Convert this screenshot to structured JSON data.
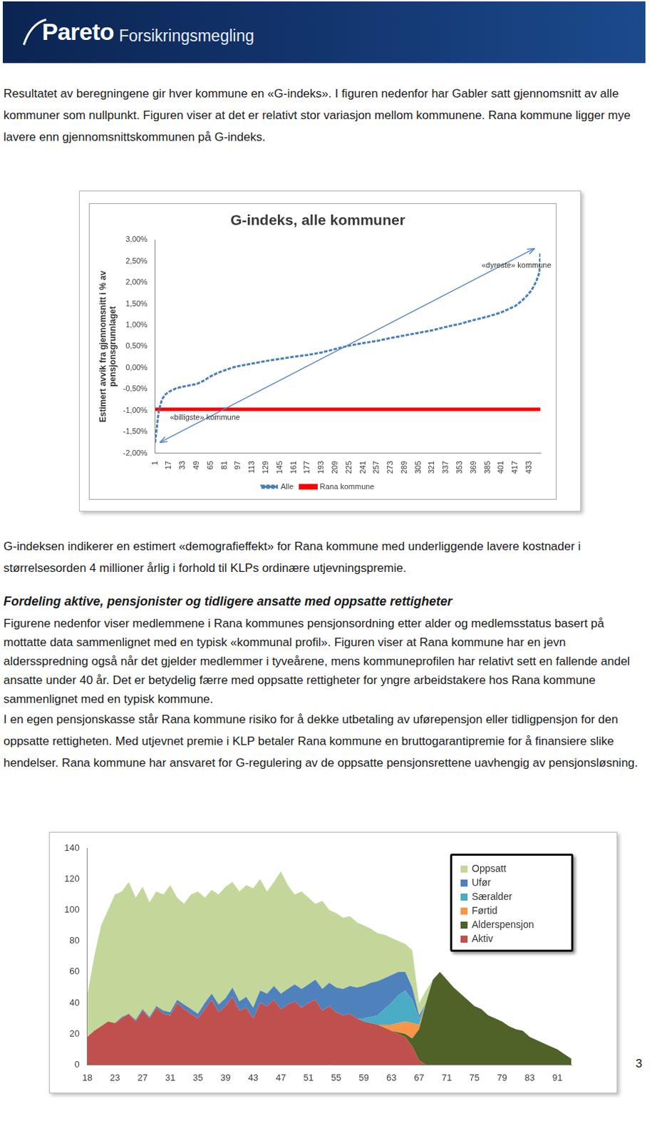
{
  "header": {
    "brand": "Pareto",
    "subbrand": "Forsikringsmegling"
  },
  "intro": "Resultatet av beregningene gir hver kommune en «G-indeks». I figuren nedenfor har Gabler satt gjennomsnitt av alle kommuner som nullpunkt. Figuren viser at det er relativt stor variasjon mellom kommunene. Rana kommune ligger mye lavere enn gjennomsnittskommunen på G-indeks.",
  "after_chart": "G-indeksen indikerer en estimert «demografieffekt» for Rana kommune med underliggende lavere kostnader i størrelsesorden 4 millioner årlig i forhold til KLPs ordinære utjevningspremie.",
  "section": {
    "heading": "Fordeling aktive, pensjonister og tidligere ansatte med oppsatte rettigheter",
    "paragraphs": [
      "Figurene nedenfor viser medlemmene i Rana kommunes pensjonsordning etter alder og medlemsstatus basert på mottatte data sammenlignet med en typisk «kommunal profil». Figuren viser at Rana kommune har en jevn aldersspredning også når det gjelder medlemmer i tyveårene, mens kommuneprofilen har relativt sett en fallende andel ansatte under 40 år. Det er betydelig færre med oppsatte rettigheter for yngre arbeidstakere hos Rana kommune sammenlignet med en typisk kommune.",
      "I en egen pensjonskasse står Rana kommune risiko for å dekke utbetaling av uførepensjon eller tidligpensjon for den oppsatte rettigheten. Med utjevnet premie i KLP betaler Rana kommune en bruttogarantipremie for å finansiere slike hendelser. Rana kommune har ansvaret for G-regulering av de oppsatte pensjonsrettene uavhengig av pensjonsløsning."
    ]
  },
  "page_number": 3,
  "chart_data": [
    {
      "type": "line",
      "title": "G-indeks, alle kommuner",
      "y_label": [
        "Estimert avvik fra gjennomsnitt i % av",
        "pensjonsgrunnlaget"
      ],
      "x": [
        1,
        2,
        3,
        4,
        5,
        6,
        8,
        10,
        13,
        17,
        25,
        33,
        41,
        49,
        57,
        65,
        73,
        81,
        89,
        97,
        113,
        129,
        145,
        161,
        177,
        193,
        209,
        225,
        241,
        257,
        273,
        289,
        305,
        321,
        337,
        353,
        369,
        385,
        401,
        417,
        425,
        430,
        435,
        438,
        441,
        443,
        445,
        446
      ],
      "series": [
        {
          "name": "Alle",
          "color": "#4a7ebb",
          "values": [
            -1.75,
            -1.55,
            -1.4,
            -1.2,
            -1.05,
            -0.95,
            -0.8,
            -0.7,
            -0.62,
            -0.56,
            -0.48,
            -0.44,
            -0.41,
            -0.38,
            -0.3,
            -0.2,
            -0.12,
            -0.06,
            0,
            0.04,
            0.1,
            0.16,
            0.21,
            0.26,
            0.3,
            0.36,
            0.44,
            0.52,
            0.58,
            0.63,
            0.7,
            0.76,
            0.82,
            0.88,
            0.96,
            1.03,
            1.12,
            1.2,
            1.3,
            1.45,
            1.58,
            1.68,
            1.8,
            1.9,
            2.02,
            2.12,
            2.25,
            2.7
          ]
        },
        {
          "name": "Rana kommune",
          "color": "#ff0000",
          "values": [
            -0.97,
            -0.97,
            -0.97,
            -0.97,
            -0.97,
            -0.97,
            -0.97,
            -0.97,
            -0.97,
            -0.97,
            -0.97,
            -0.97,
            -0.97,
            -0.97,
            -0.97,
            -0.97,
            -0.97,
            -0.97,
            -0.97,
            -0.97,
            -0.97,
            -0.97,
            -0.97,
            -0.97,
            -0.97,
            -0.97,
            -0.97,
            -0.97,
            -0.97,
            -0.97,
            -0.97,
            -0.97,
            -0.97,
            -0.97,
            -0.97,
            -0.97,
            -0.97,
            -0.97,
            -0.97,
            -0.97,
            -0.97,
            -0.97,
            -0.97,
            -0.97,
            -0.97,
            -0.97,
            -0.97,
            -0.97
          ]
        }
      ],
      "xlim": [
        1,
        446
      ],
      "xticks": [
        1,
        17,
        33,
        49,
        65,
        81,
        97,
        113,
        129,
        145,
        161,
        177,
        193,
        209,
        225,
        241,
        257,
        273,
        289,
        305,
        321,
        337,
        353,
        369,
        385,
        401,
        417,
        433
      ],
      "ylim": [
        -2,
        3
      ],
      "yticks": [
        {
          "value": -2,
          "label": "-2,00%"
        },
        {
          "value": -1.5,
          "label": "-1,50%"
        },
        {
          "value": -1,
          "label": "-1,00%"
        },
        {
          "value": -0.5,
          "label": "-0,50%"
        },
        {
          "value": 0,
          "label": "0,00%"
        },
        {
          "value": 0.5,
          "label": "0,50%"
        },
        {
          "value": 1,
          "label": "1,00%"
        },
        {
          "value": 1.5,
          "label": "1,50%"
        },
        {
          "value": 2,
          "label": "2,00%"
        },
        {
          "value": 2.5,
          "label": "2,50%"
        },
        {
          "value": 3,
          "label": "3,00%"
        }
      ],
      "annotations": [
        {
          "text": "«dyreste» kommune",
          "x": 378,
          "y": 2.4
        },
        {
          "text": "«billigste» kommune",
          "x": 18,
          "y": -1.17
        }
      ],
      "legend": "bottom",
      "grid": false
    },
    {
      "type": "area",
      "stacked": true,
      "legend": "upper right",
      "grid": false,
      "categories": [
        "18",
        null,
        null,
        null,
        "23",
        null,
        null,
        null,
        "27",
        null,
        null,
        null,
        "31",
        null,
        null,
        null,
        "35",
        null,
        null,
        null,
        "39",
        null,
        null,
        null,
        "43",
        null,
        null,
        null,
        "47",
        null,
        null,
        null,
        "51",
        null,
        null,
        null,
        "55",
        null,
        null,
        null,
        "59",
        null,
        null,
        null,
        "63",
        null,
        null,
        null,
        "67",
        null,
        null,
        null,
        "71",
        null,
        null,
        null,
        "75",
        null,
        null,
        null,
        "79",
        null,
        null,
        null,
        "83",
        null,
        null,
        null,
        "91",
        null,
        null
      ],
      "series": [
        {
          "name": "Oppsatt",
          "color": "#c4d79b",
          "values": [
            27,
            48,
            65,
            72,
            83,
            81,
            85,
            79,
            79,
            74,
            74,
            75,
            82,
            66,
            65,
            74,
            79,
            68,
            67,
            71,
            72,
            68,
            71,
            72,
            77,
            72,
            66,
            67,
            79,
            67,
            58,
            63,
            56,
            49,
            57,
            47,
            48,
            46,
            45,
            42,
            39,
            35,
            31,
            28,
            24,
            20,
            18,
            24,
            8,
            8,
            0,
            0,
            0,
            0,
            0,
            0,
            0,
            0,
            0,
            0,
            0,
            0,
            0,
            0,
            0,
            0,
            0,
            0,
            0,
            0,
            0
          ]
        },
        {
          "name": "Ufør",
          "color": "#4f81bd",
          "values": [
            0,
            0,
            0,
            0,
            0,
            1,
            0,
            1,
            1,
            1,
            1,
            2,
            2,
            2,
            3,
            3,
            3,
            4,
            4,
            5,
            5,
            6,
            6,
            7,
            7,
            8,
            8,
            9,
            10,
            10,
            11,
            12,
            12,
            13,
            14,
            15,
            16,
            17,
            18,
            20,
            21,
            22,
            22,
            20,
            18,
            15,
            12,
            8,
            2,
            0,
            0,
            0,
            0,
            0,
            0,
            0,
            0,
            0,
            0,
            0,
            0,
            0,
            0,
            0,
            0,
            0,
            0,
            0,
            0,
            0,
            0
          ]
        },
        {
          "name": "Særalder",
          "color": "#4bacc6",
          "values": [
            0,
            0,
            0,
            0,
            0,
            0,
            0,
            0,
            0,
            0,
            0,
            0,
            0,
            0,
            0,
            0,
            0,
            0,
            0,
            0,
            0,
            0,
            0,
            0,
            0,
            0,
            0,
            0,
            0,
            0,
            0,
            0,
            0,
            0,
            0,
            0,
            0,
            0,
            0,
            0,
            2,
            4,
            6,
            10,
            14,
            18,
            20,
            15,
            4,
            0,
            0,
            0,
            0,
            0,
            0,
            0,
            0,
            0,
            0,
            0,
            0,
            0,
            0,
            0,
            0,
            0,
            0,
            0,
            0,
            0,
            0
          ]
        },
        {
          "name": "Førtid",
          "color": "#f79646",
          "values": [
            0,
            0,
            0,
            0,
            0,
            0,
            0,
            0,
            0,
            0,
            0,
            0,
            0,
            0,
            0,
            0,
            0,
            0,
            0,
            0,
            0,
            0,
            0,
            0,
            0,
            0,
            0,
            0,
            0,
            0,
            0,
            0,
            0,
            0,
            0,
            0,
            0,
            0,
            0,
            0,
            0,
            0,
            0,
            2,
            4,
            6,
            8,
            10,
            3,
            0,
            0,
            0,
            0,
            0,
            0,
            0,
            0,
            0,
            0,
            0,
            0,
            0,
            0,
            0,
            0,
            0,
            0,
            0,
            0,
            0,
            0
          ]
        },
        {
          "name": "Alderspensjon",
          "color": "#4f6228",
          "values": [
            0,
            0,
            0,
            0,
            0,
            0,
            0,
            0,
            0,
            0,
            0,
            0,
            0,
            0,
            0,
            0,
            0,
            0,
            0,
            0,
            0,
            0,
            0,
            0,
            0,
            0,
            0,
            0,
            0,
            0,
            0,
            0,
            0,
            0,
            0,
            0,
            0,
            0,
            0,
            0,
            0,
            0,
            0,
            0,
            0,
            1,
            2,
            5,
            20,
            40,
            55,
            60,
            55,
            50,
            46,
            42,
            38,
            36,
            32,
            30,
            28,
            25,
            23,
            22,
            18,
            16,
            14,
            12,
            10,
            7,
            4
          ]
        },
        {
          "name": "Aktiv",
          "color": "#c0504d",
          "values": [
            18,
            22,
            25,
            28,
            27,
            30,
            33,
            28,
            35,
            30,
            37,
            33,
            32,
            40,
            36,
            33,
            30,
            36,
            42,
            34,
            38,
            44,
            35,
            37,
            30,
            40,
            38,
            42,
            36,
            39,
            41,
            37,
            40,
            42,
            35,
            38,
            34,
            32,
            33,
            30,
            28,
            27,
            26,
            24,
            22,
            20,
            18,
            12,
            3,
            0,
            0,
            0,
            0,
            0,
            0,
            0,
            0,
            0,
            0,
            0,
            0,
            0,
            0,
            0,
            0,
            0,
            0,
            0,
            0,
            0,
            0
          ]
        }
      ],
      "ylim": [
        0,
        140
      ],
      "yticks": [
        0,
        20,
        40,
        60,
        80,
        100,
        120,
        140
      ]
    }
  ]
}
